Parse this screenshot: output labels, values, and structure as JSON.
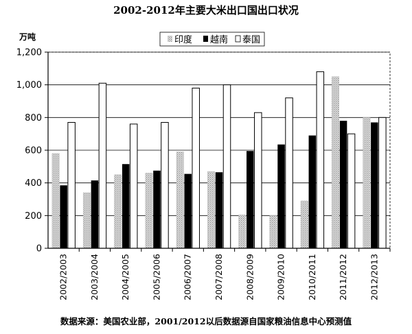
{
  "chart_data": {
    "type": "bar",
    "title": "2002-2012年主要大米出口国出口状况",
    "ylabel": "万吨",
    "xlabel": "",
    "ylim": [
      0,
      1200
    ],
    "yticks": [
      0,
      200,
      400,
      600,
      800,
      1000,
      1200
    ],
    "ytick_labels": [
      "0",
      "200",
      "400",
      "600",
      "800",
      "1,000",
      "1,200"
    ],
    "grid": true,
    "legend_position": "top-center",
    "categories": [
      "2002/2003",
      "2003/2004",
      "2004/2005",
      "2005/2006",
      "2006/2007",
      "2007/2008",
      "2008/2009",
      "2009/2010",
      "2010/2011",
      "2011/2012",
      "2012/2013"
    ],
    "series": [
      {
        "name": "印度",
        "pattern": "dotted-gray",
        "values": [
          580,
          340,
          450,
          460,
          590,
          470,
          205,
          200,
          290,
          1050,
          800
        ]
      },
      {
        "name": "越南",
        "pattern": "solid-black",
        "values": [
          385,
          415,
          515,
          475,
          455,
          465,
          595,
          635,
          690,
          780,
          770
        ]
      },
      {
        "name": "泰国",
        "pattern": "white",
        "values": [
          770,
          1010,
          760,
          770,
          980,
          1000,
          830,
          920,
          1080,
          700,
          800
        ]
      }
    ],
    "source_note": "数据来源：美国农业部，2001/2012以后数据源自国家粮油信息中心预测值"
  },
  "colors": {
    "series_1_fill": "#c8c8c8",
    "series_2_fill": "#000000",
    "series_3_fill": "#ffffff",
    "grid": "#000000",
    "axis": "#000000"
  }
}
